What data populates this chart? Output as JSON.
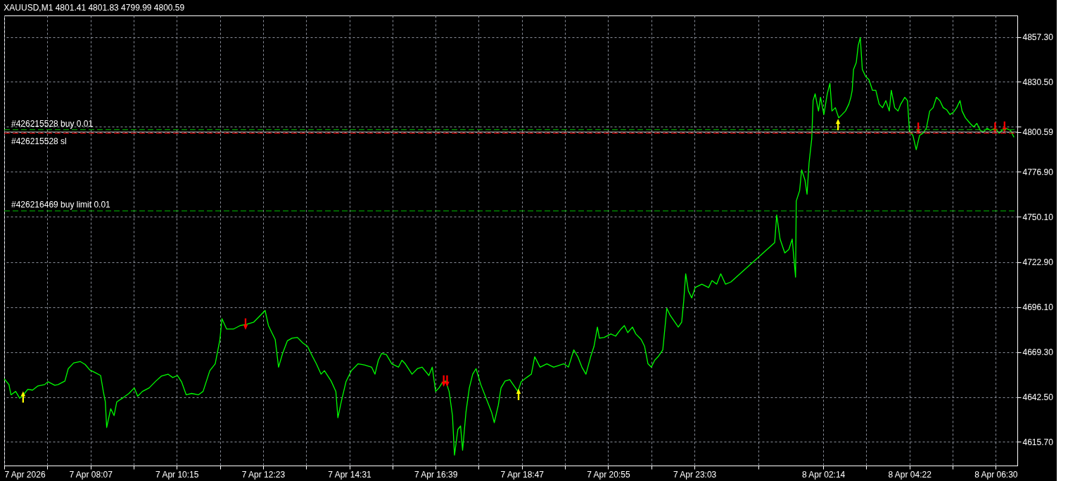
{
  "chart_data": {
    "type": "line",
    "title": "XAUUSD,M1  4801.41 4801.83 4799.99 4800.59",
    "xlim": [
      "2026-04-07T05:59",
      "2026-04-08T07:02"
    ],
    "xticks": [
      {
        "value": "2026-04-07T05:59",
        "label": "7 Apr 2026"
      },
      {
        "value": "2026-04-07T07:03",
        "label": null
      },
      {
        "value": "2026-04-07T08:07",
        "label": "7 Apr 08:07"
      },
      {
        "value": "2026-04-07T09:11",
        "label": null
      },
      {
        "value": "2026-04-07T10:15",
        "label": "7 Apr 10:15"
      },
      {
        "value": "2026-04-07T11:19",
        "label": null
      },
      {
        "value": "2026-04-07T12:23",
        "label": "7 Apr 12:23"
      },
      {
        "value": "2026-04-07T13:27",
        "label": null
      },
      {
        "value": "2026-04-07T14:31",
        "label": "7 Apr 14:31"
      },
      {
        "value": "2026-04-07T15:35",
        "label": null
      },
      {
        "value": "2026-04-07T16:39",
        "label": "7 Apr 16:39"
      },
      {
        "value": "2026-04-07T17:43",
        "label": null
      },
      {
        "value": "2026-04-07T18:47",
        "label": "7 Apr 18:47"
      },
      {
        "value": "2026-04-07T19:51",
        "label": null
      },
      {
        "value": "2026-04-07T20:55",
        "label": "7 Apr 20:55"
      },
      {
        "value": "2026-04-07T21:59",
        "label": null
      },
      {
        "value": "2026-04-07T23:03",
        "label": "7 Apr 23:03"
      },
      {
        "value": "2026-04-08T00:38",
        "label": null
      },
      {
        "value": "2026-04-08T02:14",
        "label": "8 Apr 02:14"
      },
      {
        "value": "2026-04-08T03:18",
        "label": null
      },
      {
        "value": "2026-04-08T04:22",
        "label": "8 Apr 04:22"
      },
      {
        "value": "2026-04-08T05:26",
        "label": null
      },
      {
        "value": "2026-04-08T06:30",
        "label": "8 Apr 06:30"
      }
    ],
    "ylim": [
      4601.6,
      4870.1
    ],
    "yticks": [
      {
        "value": 4857.3,
        "label": "4857.30"
      },
      {
        "value": 4830.5,
        "label": "4830.50"
      },
      {
        "value": 4803.7,
        "label": null
      },
      {
        "value": 4800.59,
        "label": "4800.59"
      },
      {
        "value": 4776.9,
        "label": "4776.90"
      },
      {
        "value": 4750.1,
        "label": "4750.10"
      },
      {
        "value": 4722.9,
        "label": "4722.90"
      },
      {
        "value": 4696.1,
        "label": "4696.10"
      },
      {
        "value": 4669.3,
        "label": "4669.30"
      },
      {
        "value": 4642.5,
        "label": "4642.50"
      },
      {
        "value": 4615.7,
        "label": "4615.70"
      }
    ],
    "grid": true,
    "series": [
      {
        "color": "#00ff00",
        "x": [
          "2026-04-07T05:59",
          "2026-04-07T06:06",
          "2026-04-07T06:09",
          "2026-04-07T06:16",
          "2026-04-07T06:22",
          "2026-04-07T06:29",
          "2026-04-07T06:34",
          "2026-04-07T06:41",
          "2026-04-07T06:49",
          "2026-04-07T06:59",
          "2026-04-07T07:04",
          "2026-04-07T07:14",
          "2026-04-07T07:19",
          "2026-04-07T07:29",
          "2026-04-07T07:34",
          "2026-04-07T07:42",
          "2026-04-07T07:52",
          "2026-04-07T07:59",
          "2026-04-07T08:06",
          "2026-04-07T08:14",
          "2026-04-07T08:22",
          "2026-04-07T08:26",
          "2026-04-07T08:29",
          "2026-04-07T08:31",
          "2026-04-07T08:37",
          "2026-04-07T08:42",
          "2026-04-07T08:46",
          "2026-04-07T08:54",
          "2026-04-07T09:04",
          "2026-04-07T09:12",
          "2026-04-07T09:17",
          "2026-04-07T09:24",
          "2026-04-07T09:34",
          "2026-04-07T09:44",
          "2026-04-07T09:52",
          "2026-04-07T10:02",
          "2026-04-07T10:09",
          "2026-04-07T10:16",
          "2026-04-07T10:22",
          "2026-04-07T10:29",
          "2026-04-07T10:37",
          "2026-04-07T10:47",
          "2026-04-07T10:54",
          "2026-04-07T10:59",
          "2026-04-07T11:04",
          "2026-04-07T11:12",
          "2026-04-07T11:19",
          "2026-04-07T11:22",
          "2026-04-07T11:29",
          "2026-04-07T11:39",
          "2026-04-07T11:49",
          "2026-04-07T11:59",
          "2026-04-07T12:09",
          "2026-04-07T12:19",
          "2026-04-07T12:26",
          "2026-04-07T12:31",
          "2026-04-07T12:36",
          "2026-04-07T12:41",
          "2026-04-07T12:46",
          "2026-04-07T12:52",
          "2026-04-07T12:59",
          "2026-04-07T13:06",
          "2026-04-07T13:14",
          "2026-04-07T13:22",
          "2026-04-07T13:29",
          "2026-04-07T13:34",
          "2026-04-07T13:42",
          "2026-04-07T13:49",
          "2026-04-07T13:54",
          "2026-04-07T14:04",
          "2026-04-07T14:11",
          "2026-04-07T14:14",
          "2026-04-07T14:19",
          "2026-04-07T14:26",
          "2026-04-07T14:34",
          "2026-04-07T14:44",
          "2026-04-07T14:54",
          "2026-04-07T15:04",
          "2026-04-07T15:09",
          "2026-04-07T15:14",
          "2026-04-07T15:19",
          "2026-04-07T15:26",
          "2026-04-07T15:34",
          "2026-04-07T15:44",
          "2026-04-07T15:49",
          "2026-04-07T15:54",
          "2026-04-07T16:04",
          "2026-04-07T16:12",
          "2026-04-07T16:19",
          "2026-04-07T16:29",
          "2026-04-07T16:34",
          "2026-04-07T16:39",
          "2026-04-07T16:44",
          "2026-04-07T16:49",
          "2026-04-07T16:54",
          "2026-04-07T16:59",
          "2026-04-07T17:04",
          "2026-04-07T17:07",
          "2026-04-07T17:12",
          "2026-04-07T17:16",
          "2026-04-07T17:19",
          "2026-04-07T17:24",
          "2026-04-07T17:29",
          "2026-04-07T17:34",
          "2026-04-07T17:39",
          "2026-04-07T17:46",
          "2026-04-07T17:54",
          "2026-04-07T18:02",
          "2026-04-07T18:06",
          "2026-04-07T18:12",
          "2026-04-07T18:16",
          "2026-04-07T18:22",
          "2026-04-07T18:29",
          "2026-04-07T18:34",
          "2026-04-07T18:41",
          "2026-04-07T18:46",
          "2026-04-07T18:54",
          "2026-04-07T19:01",
          "2026-04-07T19:06",
          "2026-04-07T19:14",
          "2026-04-07T19:24",
          "2026-04-07T19:34",
          "2026-04-07T19:49",
          "2026-04-07T19:56",
          "2026-04-07T20:04",
          "2026-04-07T20:10",
          "2026-04-07T20:16",
          "2026-04-07T20:22",
          "2026-04-07T20:29",
          "2026-04-07T20:34",
          "2026-04-07T20:39",
          "2026-04-07T20:42",
          "2026-04-07T20:49",
          "2026-04-07T20:59",
          "2026-04-07T21:06",
          "2026-04-07T21:14",
          "2026-04-07T21:19",
          "2026-04-07T21:24",
          "2026-04-07T21:31",
          "2026-04-07T21:36",
          "2026-04-07T21:44",
          "2026-04-07T21:49",
          "2026-04-07T21:54",
          "2026-04-07T21:59",
          "2026-04-07T22:04",
          "2026-04-07T22:09",
          "2026-04-07T22:16",
          "2026-04-07T22:19",
          "2026-04-07T22:22",
          "2026-04-07T22:27",
          "2026-04-07T22:34",
          "2026-04-07T22:39",
          "2026-04-07T22:44",
          "2026-04-07T22:47",
          "2026-04-07T22:50",
          "2026-04-07T22:54",
          "2026-04-07T22:59",
          "2026-04-07T23:04",
          "2026-04-07T23:14",
          "2026-04-07T23:24",
          "2026-04-07T23:29",
          "2026-04-07T23:36",
          "2026-04-07T23:42",
          "2026-04-07T23:49",
          "2026-04-07T23:57",
          "2026-04-08T01:02",
          "2026-04-08T01:05",
          "2026-04-08T01:10",
          "2026-04-08T01:17",
          "2026-04-08T01:23",
          "2026-04-08T01:28",
          "2026-04-08T01:33",
          "2026-04-08T01:34",
          "2026-04-08T01:39",
          "2026-04-08T01:42",
          "2026-04-08T01:47",
          "2026-04-08T01:50",
          "2026-04-08T01:53",
          "2026-04-08T01:57",
          "2026-04-08T01:59",
          "2026-04-08T02:02",
          "2026-04-08T02:07",
          "2026-04-08T02:10",
          "2026-04-08T02:15",
          "2026-04-08T02:20",
          "2026-04-08T02:24",
          "2026-04-08T02:27",
          "2026-04-08T02:32",
          "2026-04-08T02:37",
          "2026-04-08T02:42",
          "2026-04-08T02:47",
          "2026-04-08T02:52",
          "2026-04-08T02:55",
          "2026-04-08T02:57",
          "2026-04-08T02:59",
          "2026-04-08T03:03",
          "2026-04-08T03:06",
          "2026-04-08T03:09",
          "2026-04-08T03:12",
          "2026-04-08T03:17",
          "2026-04-08T03:22",
          "2026-04-08T03:27",
          "2026-04-08T03:32",
          "2026-04-08T03:37",
          "2026-04-08T03:42",
          "2026-04-08T03:47",
          "2026-04-08T03:52",
          "2026-04-08T03:55",
          "2026-04-08T04:00",
          "2026-04-08T04:05",
          "2026-04-08T04:09",
          "2026-04-08T04:15",
          "2026-04-08T04:19",
          "2026-04-08T04:22",
          "2026-04-08T04:27",
          "2026-04-08T04:32",
          "2026-04-08T04:37",
          "2026-04-08T04:42",
          "2026-04-08T04:47",
          "2026-04-08T04:52",
          "2026-04-08T04:57",
          "2026-04-08T05:02",
          "2026-04-08T05:07",
          "2026-04-08T05:12",
          "2026-04-08T05:17",
          "2026-04-08T05:22",
          "2026-04-08T05:27",
          "2026-04-08T05:32",
          "2026-04-08T05:37",
          "2026-04-08T05:40",
          "2026-04-08T05:45",
          "2026-04-08T05:52",
          "2026-04-08T05:57",
          "2026-04-08T06:02",
          "2026-04-08T06:07",
          "2026-04-08T06:12",
          "2026-04-08T06:17",
          "2026-04-08T06:22",
          "2026-04-08T06:29",
          "2026-04-08T06:35",
          "2026-04-08T06:39",
          "2026-04-08T06:45",
          "2026-04-08T06:52",
          "2026-04-08T06:57"
        ],
        "values": [
          4653.3,
          4649.9,
          4643.8,
          4645.8,
          4641.7,
          4644.6,
          4647.1,
          4646.6,
          4649.1,
          4649.9,
          4651.6,
          4649.5,
          4649.9,
          4652.0,
          4659.4,
          4662.8,
          4663.6,
          4661.9,
          4658.6,
          4657.0,
          4655.3,
          4645.8,
          4639.6,
          4624.3,
          4635.5,
          4631.4,
          4639.6,
          4641.7,
          4644.6,
          4647.9,
          4642.9,
          4645.8,
          4647.9,
          4652.0,
          4654.9,
          4656.1,
          4654.1,
          4655.3,
          4651.6,
          4643.8,
          4644.6,
          4643.8,
          4645.8,
          4652.0,
          4658.2,
          4662.3,
          4676.8,
          4689.2,
          4683.0,
          4683.0,
          4685.1,
          4685.9,
          4687.1,
          4691.2,
          4694.1,
          4685.1,
          4680.9,
          4676.8,
          4660.3,
          4668.5,
          4676.0,
          4677.6,
          4678.0,
          4674.7,
          4672.7,
          4668.5,
          4662.3,
          4656.1,
          4658.2,
          4652.0,
          4645.8,
          4630.1,
          4639.6,
          4651.6,
          4658.2,
          4662.3,
          4661.5,
          4660.3,
          4656.1,
          4664.4,
          4668.5,
          4667.7,
          4662.3,
          4660.3,
          4664.4,
          4662.3,
          4656.1,
          4659.4,
          4660.3,
          4655.3,
          4660.3,
          4645.8,
          4647.9,
          4651.2,
          4652.0,
          4645.8,
          4631.4,
          4607.8,
          4623.1,
          4625.2,
          4610.7,
          4633.4,
          4647.9,
          4656.1,
          4659.4,
          4649.9,
          4641.7,
          4633.4,
          4627.2,
          4637.6,
          4647.9,
          4652.0,
          4652.8,
          4649.9,
          4645.8,
          4651.6,
          4654.1,
          4656.1,
          4666.5,
          4660.3,
          4662.3,
          4660.3,
          4662.3,
          4660.3,
          4670.6,
          4666.5,
          4660.3,
          4656.1,
          4666.5,
          4672.7,
          4684.2,
          4677.6,
          4678.0,
          4680.1,
          4678.8,
          4683.0,
          4685.1,
          4680.9,
          4684.2,
          4680.1,
          4676.8,
          4672.7,
          4662.3,
          4660.3,
          4664.4,
          4666.5,
          4670.6,
          4683.0,
          4695.4,
          4691.2,
          4687.1,
          4684.2,
          4687.1,
          4699.5,
          4716.0,
          4705.7,
          4701.6,
          4707.8,
          4709.8,
          4707.8,
          4711.9,
          4709.8,
          4716.0,
          4709.8,
          4711.1,
          4734.6,
          4751.1,
          4736.7,
          4728.4,
          4730.5,
          4736.7,
          4714.0,
          4759.4,
          4765.6,
          4778.0,
          4771.8,
          4763.5,
          4782.1,
          4796.6,
          4819.3,
          4823.4,
          4813.1,
          4821.3,
          4811.0,
          4823.4,
          4829.6,
          4813.1,
          4815.1,
          4809.0,
          4811.0,
          4813.1,
          4817.2,
          4821.3,
          4825.5,
          4837.9,
          4842.0,
          4852.3,
          4856.9,
          4837.9,
          4833.7,
          4831.7,
          4825.5,
          4825.5,
          4817.2,
          4815.1,
          4819.3,
          4813.1,
          4825.5,
          4815.1,
          4813.1,
          4817.2,
          4821.3,
          4819.3,
          4800.7,
          4798.6,
          4790.0,
          4798.6,
          4799.9,
          4802.8,
          4813.1,
          4815.1,
          4821.3,
          4819.3,
          4815.1,
          4813.9,
          4811.0,
          4812.3,
          4815.1,
          4819.3,
          4813.1,
          4809.0,
          4805.7,
          4803.6,
          4805.7,
          4801.5,
          4800.7,
          4802.8,
          4801.5,
          4802.8,
          4799.9,
          4801.5,
          4802.8,
          4801.5,
          4797.4
        ]
      },
      {
        "type": "scatter",
        "color": "#ffff00",
        "marker": "triangle-up",
        "x": [
          "2026-04-07T06:27",
          "2026-04-07T18:42",
          "2026-04-08T02:36"
        ],
        "values": [
          4642.5,
          4644.0,
          4805.0
        ]
      },
      {
        "type": "scatter",
        "color": "#ff0000",
        "marker": "triangle-down",
        "x": [
          "2026-04-07T11:57",
          "2026-04-07T16:51",
          "2026-04-07T16:56",
          "2026-04-08T04:35",
          "2026-04-08T06:29",
          "2026-04-08T06:43"
        ],
        "values": [
          4686.0,
          4652.0,
          4652.0,
          4802.8,
          4803.0,
          4803.5
        ]
      }
    ],
    "ref_lines": [
      {
        "axis": "y",
        "value": 4801.9,
        "label": "#426215528 buy 0.01",
        "color": "#00c000",
        "line_style": "dashed"
      },
      {
        "axis": "y",
        "value": 4799.9,
        "label": "#426215528 sl",
        "color": "#ff0000",
        "line_style": "dashed"
      },
      {
        "axis": "y",
        "value": 4800.59,
        "color": "#a0a0a0",
        "line_style": "solid"
      },
      {
        "axis": "y",
        "value": 4753.5,
        "label": "#426216469 buy limit 0.01",
        "color": "#00c000",
        "line_style": "dashed"
      }
    ]
  }
}
